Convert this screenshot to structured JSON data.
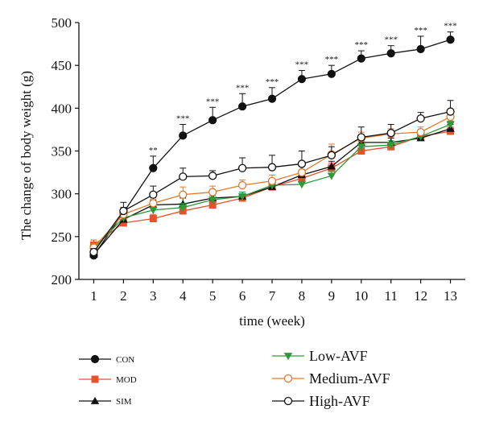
{
  "chart_data": {
    "type": "line",
    "xlabel": "time (week)",
    "ylabel": "The change of body weight (g)",
    "x": [
      1,
      2,
      3,
      4,
      5,
      6,
      7,
      8,
      9,
      10,
      11,
      12,
      13
    ],
    "xlim": [
      0.5,
      13.5
    ],
    "ylim": [
      200,
      500
    ],
    "yticks": [
      200,
      250,
      300,
      350,
      400,
      450,
      500
    ],
    "grid": false,
    "legend_position": "bottom",
    "series": [
      {
        "name": "CON",
        "marker": "circle-filled",
        "color": "#111111",
        "values": [
          228,
          278,
          330,
          368,
          386,
          402,
          411,
          434,
          440,
          458,
          464,
          469,
          480
        ],
        "err": [
          3,
          6,
          14,
          13,
          15,
          15,
          13,
          10,
          10,
          9,
          9,
          15,
          9
        ]
      },
      {
        "name": "MOD",
        "marker": "square-filled",
        "color": "#e2542c",
        "values": [
          240,
          266,
          271,
          280,
          287,
          295,
          308,
          318,
          330,
          350,
          355,
          367,
          373
        ],
        "err": [
          6,
          4,
          5,
          5,
          5,
          5,
          5,
          6,
          6,
          6,
          5,
          4,
          5
        ]
      },
      {
        "name": "SIM",
        "marker": "triangle-up-filled",
        "color": "#111111",
        "values": [
          229,
          270,
          287,
          288,
          295,
          297,
          308,
          322,
          332,
          360,
          360,
          365,
          376
        ],
        "err": [
          3,
          4,
          6,
          7,
          6,
          5,
          5,
          6,
          6,
          6,
          5,
          4,
          5
        ]
      },
      {
        "name": "Low-AVF",
        "marker": "triangle-down-filled",
        "color": "#2e9a3a",
        "values": [
          236,
          272,
          281,
          284,
          293,
          297,
          310,
          311,
          321,
          355,
          357,
          367,
          381
        ],
        "err": [
          3,
          4,
          5,
          5,
          5,
          5,
          5,
          5,
          5,
          6,
          5,
          4,
          4
        ]
      },
      {
        "name": "Medium-AVF",
        "marker": "circle-open",
        "color": "#e07a2a",
        "values": [
          237,
          276,
          289,
          299,
          302,
          310,
          315,
          325,
          346,
          365,
          370,
          372,
          390
        ],
        "err": [
          5,
          5,
          6,
          9,
          7,
          6,
          7,
          7,
          12,
          7,
          6,
          6,
          8
        ]
      },
      {
        "name": "High-AVF",
        "marker": "circle-open",
        "color": "#111111",
        "values": [
          232,
          280,
          299,
          320,
          321,
          330,
          331,
          335,
          345,
          366,
          371,
          388,
          396
        ],
        "err": [
          4,
          10,
          10,
          10,
          6,
          12,
          14,
          15,
          10,
          12,
          10,
          7,
          13
        ]
      }
    ],
    "annotations": [
      {
        "x": 3,
        "text": "**"
      },
      {
        "x": 4,
        "text": "***"
      },
      {
        "x": 5,
        "text": "***"
      },
      {
        "x": 6,
        "text": "***"
      },
      {
        "x": 7,
        "text": "***"
      },
      {
        "x": 8,
        "text": "***"
      },
      {
        "x": 9,
        "text": "***"
      },
      {
        "x": 10,
        "text": "***"
      },
      {
        "x": 11,
        "text": "***"
      },
      {
        "x": 12,
        "text": "***"
      },
      {
        "x": 13,
        "text": "***"
      }
    ]
  }
}
